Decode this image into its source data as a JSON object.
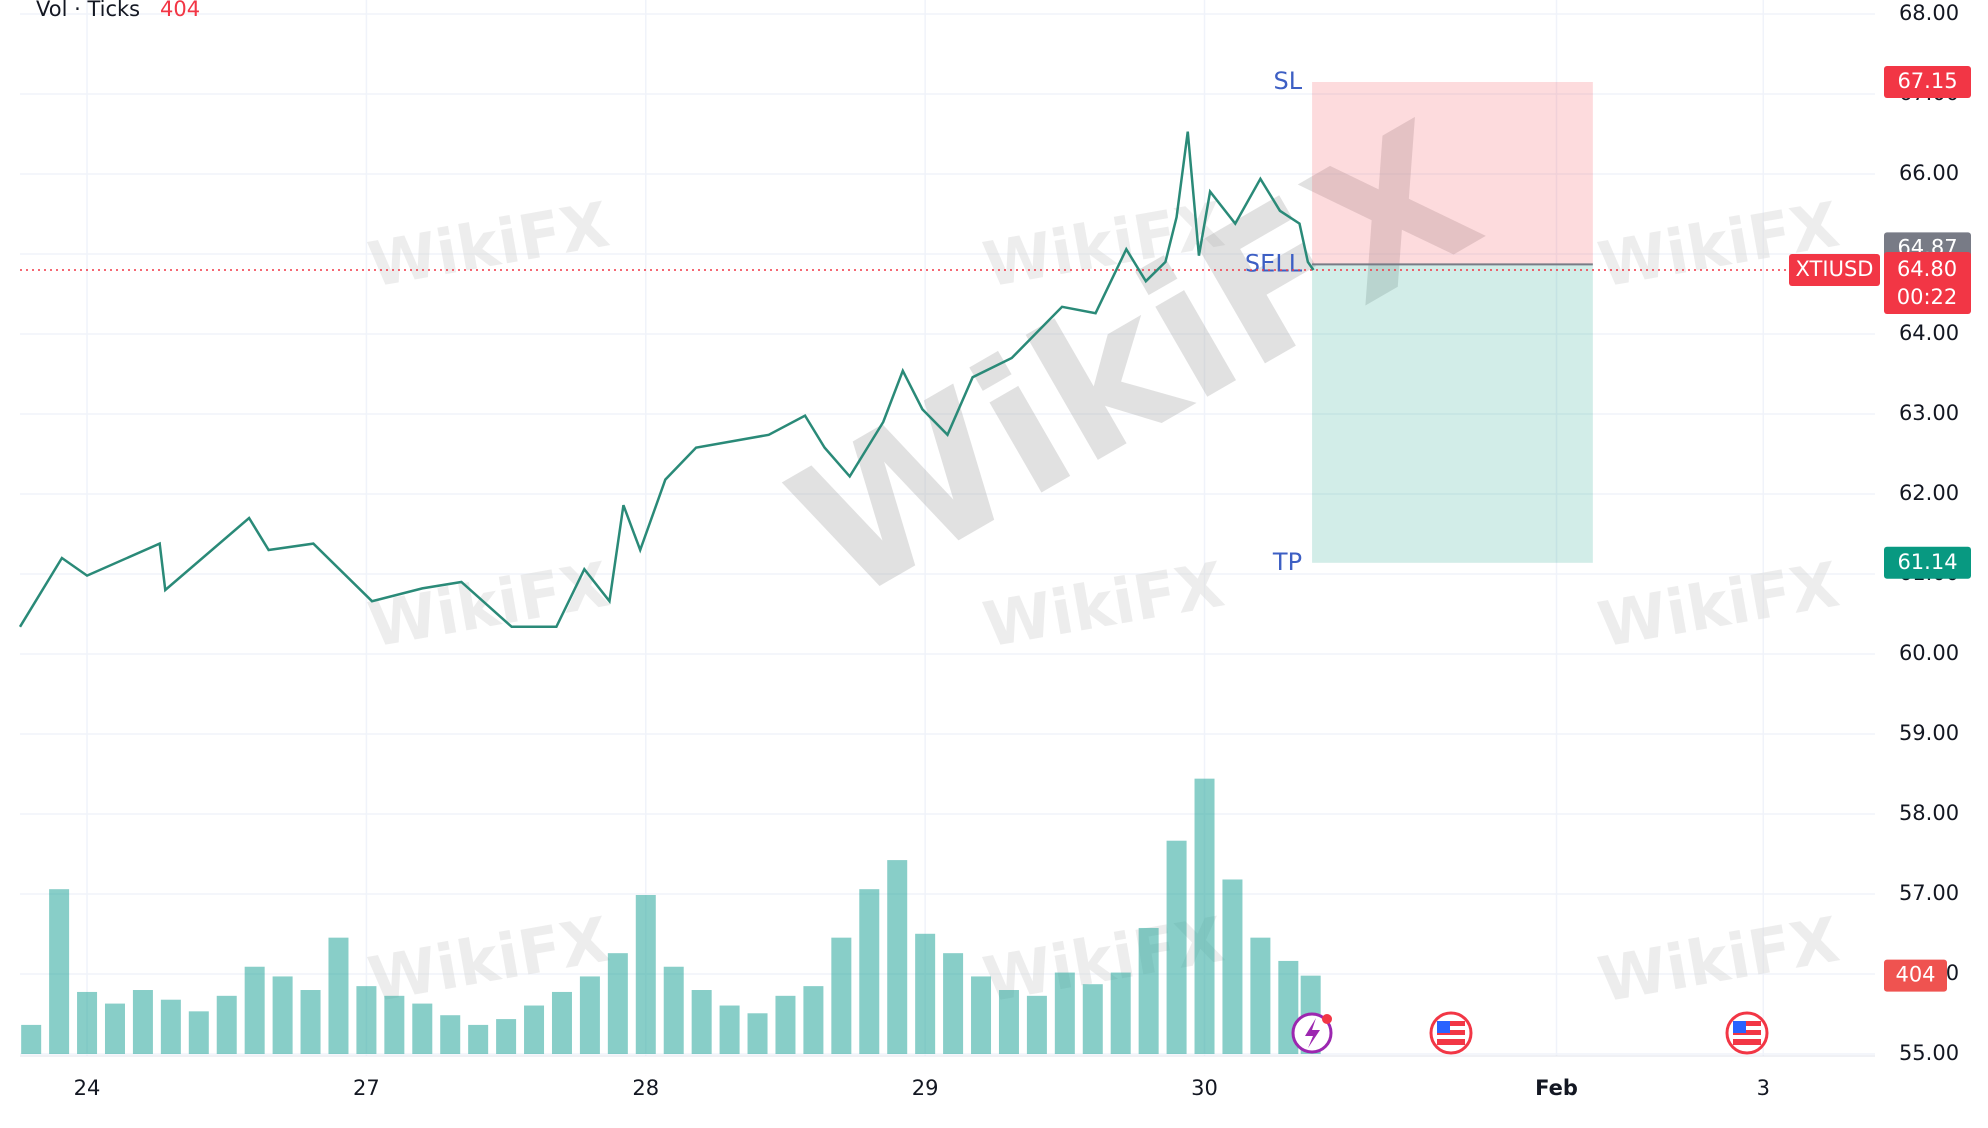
{
  "chart_data": {
    "type": "line",
    "header": {
      "indicator": "Vol · Ticks"
    },
    "watermark": "WikiFX",
    "xlim": [
      -0.24,
      6.4
    ],
    "xticks": [
      {
        "value": 0,
        "label": "24"
      },
      {
        "value": 1,
        "label": "27"
      },
      {
        "value": 2,
        "label": "28"
      },
      {
        "value": 3,
        "label": "29"
      },
      {
        "value": 4,
        "label": "30"
      },
      {
        "value": 5.26,
        "label": "Feb"
      },
      {
        "value": 6,
        "label": "3"
      }
    ],
    "ylim": [
      55,
      68
    ],
    "yticks": [
      {
        "value": 55,
        "label": "55.00"
      },
      {
        "value": 56,
        "label": "56.00"
      },
      {
        "value": 57,
        "label": "57.00"
      },
      {
        "value": 58,
        "label": "58.00"
      },
      {
        "value": 59,
        "label": "59.00"
      },
      {
        "value": 60,
        "label": "60.00"
      },
      {
        "value": 61,
        "label": "61.00"
      },
      {
        "value": 62,
        "label": "62.00"
      },
      {
        "value": 63,
        "label": "63.00"
      },
      {
        "value": 64,
        "label": "64.00"
      },
      {
        "value": 65,
        "label": "65.00"
      },
      {
        "value": 66,
        "label": "66.00"
      },
      {
        "value": 67,
        "label": "67.00"
      },
      {
        "value": 68,
        "label": "68.00"
      }
    ],
    "grid": true,
    "series": [
      {
        "name": "XTIUSD",
        "color": "#2a8a78",
        "x": [
          -0.24,
          -0.09,
          0,
          0.26,
          0.28,
          0.58,
          0.65,
          0.81,
          1.02,
          1.2,
          1.34,
          1.52,
          1.68,
          1.78,
          1.87,
          1.92,
          1.98,
          2.07,
          2.18,
          2.44,
          2.57,
          2.64,
          2.73,
          2.85,
          2.92,
          2.99,
          3.08,
          3.17,
          3.31,
          3.49,
          3.61,
          3.72,
          3.79,
          3.86,
          3.9,
          3.94,
          3.98,
          4.02,
          4.11,
          4.2,
          4.27,
          4.34,
          4.37,
          4.39
        ],
        "values": [
          60.34,
          61.2,
          60.98,
          61.38,
          60.8,
          61.7,
          61.3,
          61.38,
          60.66,
          60.82,
          60.9,
          60.34,
          60.34,
          61.06,
          60.66,
          61.86,
          61.3,
          62.18,
          62.58,
          62.74,
          62.98,
          62.58,
          62.22,
          62.9,
          63.54,
          63.06,
          62.74,
          63.46,
          63.7,
          64.34,
          64.26,
          65.06,
          64.66,
          64.9,
          65.46,
          66.53,
          64.98,
          65.78,
          65.38,
          65.94,
          65.54,
          65.38,
          64.9,
          64.8
        ]
      }
    ],
    "volume": {
      "color": "rgba(38,166,154,0.55)",
      "ylim": [
        0,
        1640
      ],
      "x": [
        -0.2,
        -0.1,
        0,
        0.1,
        0.2,
        0.3,
        0.4,
        0.5,
        0.6,
        0.7,
        0.8,
        0.9,
        1.0,
        1.1,
        1.2,
        1.3,
        1.4,
        1.5,
        1.6,
        1.7,
        1.8,
        1.9,
        2.0,
        2.1,
        2.2,
        2.3,
        2.4,
        2.5,
        2.6,
        2.7,
        2.8,
        2.9,
        3.0,
        3.1,
        3.2,
        3.3,
        3.4,
        3.5,
        3.6,
        3.7,
        3.8,
        3.9,
        4.0,
        4.1,
        4.2,
        4.3,
        4.38
      ],
      "values": [
        150,
        850,
        320,
        260,
        330,
        280,
        220,
        300,
        450,
        400,
        330,
        600,
        350,
        300,
        260,
        200,
        150,
        180,
        250,
        320,
        400,
        520,
        820,
        450,
        330,
        250,
        210,
        300,
        350,
        600,
        850,
        1000,
        620,
        520,
        400,
        330,
        300,
        420,
        360,
        420,
        650,
        1100,
        1420,
        900,
        600,
        480,
        404
      ]
    },
    "position": {
      "side_label": "SELL",
      "sl_label": "SL",
      "tp_label": "TP",
      "entry": 64.87,
      "stop_loss": 67.15,
      "take_profit": 61.14,
      "x_start": 4.385,
      "x_end": 5.39
    },
    "last_price": {
      "value": 64.8,
      "label": "64.80"
    },
    "countdown": "00:22"
  }
}
